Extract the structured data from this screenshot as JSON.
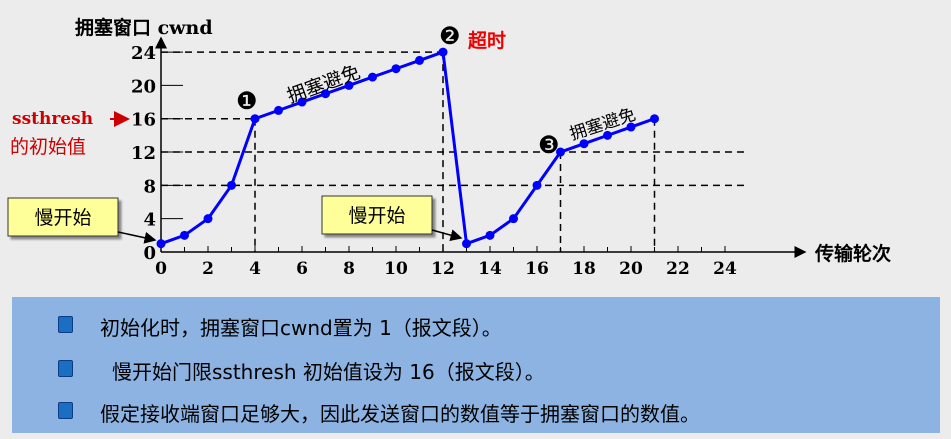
{
  "chart_data": {
    "type": "line",
    "ylabel": "拥塞窗口 cwnd",
    "xlabel": "传输轮次",
    "xlim": [
      0,
      24
    ],
    "ylim": [
      0,
      24
    ],
    "xticks": [
      0,
      2,
      4,
      6,
      8,
      10,
      12,
      14,
      16,
      18,
      20,
      22,
      24
    ],
    "yticks": [
      0,
      4,
      8,
      12,
      16,
      20,
      24
    ],
    "x": [
      0,
      1,
      2,
      3,
      4,
      5,
      6,
      7,
      8,
      9,
      10,
      11,
      12,
      13,
      14,
      15,
      16,
      17,
      18,
      19,
      20,
      21
    ],
    "y": [
      1,
      2,
      4,
      8,
      16,
      17,
      18,
      19,
      20,
      21,
      22,
      23,
      24,
      1,
      2,
      4,
      8,
      12,
      13,
      14,
      15,
      16
    ],
    "line_color": "#0000ff",
    "hlines_dashed": [
      24,
      16,
      12,
      8
    ],
    "vlines_dashed": [
      4,
      12,
      17,
      21
    ],
    "annotations": {
      "marker1": "❶",
      "marker2": "❷",
      "marker3": "❸",
      "timeout": "超时",
      "ca1": "拥塞避免",
      "ca2": "拥塞避免",
      "ss1": "慢开始",
      "ss2": "慢开始",
      "ssthresh1": "ssthresh",
      "ssthresh2": "的初始值"
    },
    "accent_red": "#cc0000",
    "box_yellow": "#ffff99"
  },
  "notes": [
    "初始化时，拥塞窗口cwnd置为 1（报文段）。",
    "慢开始门限ssthresh 初始值设为 16（报文段）。",
    "假定接收端窗口足够大，因此发送窗口的数值等于拥塞窗口的数值。"
  ]
}
